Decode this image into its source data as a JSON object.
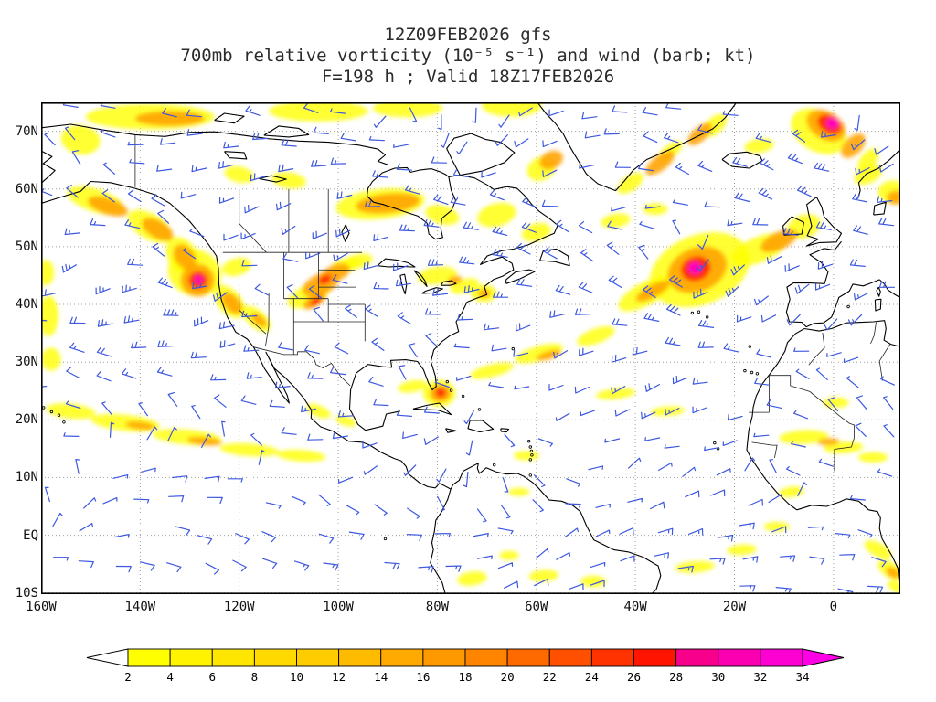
{
  "titles": {
    "line1": "12Z09FEB2026 gfs",
    "line2": "700mb relative vorticity (10⁻⁵ s⁻¹) and wind (barb; kt)",
    "line3": "F=198 h ; Valid 18Z17FEB2026"
  },
  "axes": {
    "lat_labels": [
      "70N",
      "60N",
      "50N",
      "40N",
      "30N",
      "20N",
      "10N",
      "EQ",
      "10S"
    ],
    "lat_values": [
      70,
      60,
      50,
      40,
      30,
      20,
      10,
      0,
      -10
    ],
    "lon_labels": [
      "160W",
      "140W",
      "120W",
      "100W",
      "80W",
      "60W",
      "40W",
      "20W",
      "0"
    ],
    "lon_values": [
      -160,
      -140,
      -120,
      -100,
      -80,
      -60,
      -40,
      -20,
      0
    ]
  },
  "colorbar": {
    "tick_labels": [
      "2",
      "4",
      "6",
      "8",
      "10",
      "12",
      "14",
      "16",
      "18",
      "20",
      "22",
      "24",
      "26",
      "28",
      "30",
      "32",
      "34"
    ],
    "segment_colors": [
      "#ffff00",
      "#fff300",
      "#ffe600",
      "#ffd900",
      "#ffcc00",
      "#ffbb00",
      "#ffaa00",
      "#ff9900",
      "#ff8400",
      "#ff6a00",
      "#ff5000",
      "#ff3300",
      "#ff1400",
      "#f6008c",
      "#fa00b0",
      "#fd00d2"
    ],
    "under_arrow_color": "#ffffff",
    "over_arrow_color": "#ff00e6"
  },
  "style": {
    "barb_color": "#3d58e0",
    "grid_color": "#a0a0a0",
    "coast_color": "#000000",
    "border_color": "#222222",
    "frame_color": "#000000",
    "title_color": "#2b2b2b",
    "label_color": "#111111",
    "background": "#ffffff",
    "vorticity_palette": {
      "1": "#ffff00",
      "2": "#ffa200",
      "3": "#ff2600",
      "4": "#ff00bb"
    }
  },
  "chart_data": {
    "type": "heatmap",
    "field": "700mb relative vorticity",
    "units": "10⁻⁵ s⁻¹",
    "overlay": "wind barbs (kt)",
    "model": "gfs",
    "init_time": "12Z09FEB2026",
    "forecast_hour": "F=198 h",
    "valid_time": "18Z17FEB2026",
    "lon_range": [
      -160,
      13.5
    ],
    "lat_range": [
      -10.2,
      75
    ],
    "contour_levels": [
      2,
      4,
      6,
      8,
      10,
      12,
      14,
      16,
      18,
      20,
      22,
      24,
      26,
      28,
      30,
      32,
      34
    ],
    "vorticity_feature_format": "[lon,lat,rx_deg,ry_deg,rotation_deg,level(1=yellow,2=orange,3=red,4=magenta)]",
    "vorticity_features": [
      [
        -138,
        72.5,
        13,
        2.2,
        0,
        1
      ],
      [
        -134,
        72.2,
        7,
        1.3,
        0,
        2
      ],
      [
        -152,
        68.5,
        4,
        2.5,
        10,
        1
      ],
      [
        -104,
        73.5,
        10,
        1.8,
        0,
        1
      ],
      [
        -86,
        74,
        7,
        1.6,
        0,
        1
      ],
      [
        -65,
        74.5,
        6,
        2,
        0,
        1
      ],
      [
        -120,
        62.5,
        3,
        1.4,
        12,
        1
      ],
      [
        -110,
        61.5,
        3.5,
        1.4,
        8,
        1
      ],
      [
        -149,
        58,
        6,
        2,
        18,
        1
      ],
      [
        -146.5,
        57,
        4.2,
        1.4,
        18,
        2
      ],
      [
        -138,
        53.5,
        5,
        2.2,
        30,
        1
      ],
      [
        -136.5,
        53,
        3.5,
        1.5,
        30,
        2
      ],
      [
        -131.5,
        48.5,
        4,
        2.5,
        55,
        1
      ],
      [
        -131,
        48.2,
        2.8,
        1.7,
        55,
        2
      ],
      [
        -129,
        45.5,
        5.5,
        4,
        20,
        1
      ],
      [
        -128.4,
        44.2,
        3.4,
        2.8,
        0,
        2
      ],
      [
        -128.3,
        44.2,
        1.9,
        1.5,
        0,
        3
      ],
      [
        -128.2,
        44.3,
        0.85,
        0.65,
        0,
        4
      ],
      [
        -122,
        40.5,
        4,
        2,
        48,
        1
      ],
      [
        -121.5,
        40.2,
        2.6,
        1.3,
        48,
        2
      ],
      [
        -116.5,
        37.5,
        3.5,
        1.5,
        40,
        1
      ],
      [
        -116,
        37.3,
        1.9,
        0.8,
        40,
        2
      ],
      [
        -120.5,
        46.5,
        3,
        1.5,
        -15,
        1
      ],
      [
        -106,
        41.5,
        4.5,
        1.8,
        -22,
        1
      ],
      [
        -103.5,
        43.5,
        4,
        1.8,
        -25,
        2
      ],
      [
        -100.5,
        45.5,
        3,
        1.4,
        -20,
        2
      ],
      [
        -98.5,
        46.8,
        3,
        1.2,
        -15,
        1
      ],
      [
        -102.7,
        44.3,
        1.4,
        0.7,
        -25,
        3
      ],
      [
        -104.8,
        40.6,
        2.6,
        1,
        -32,
        2
      ],
      [
        -104.6,
        40.5,
        1.3,
        0.5,
        -32,
        3
      ],
      [
        -96,
        47.5,
        3,
        1.2,
        -12,
        1
      ],
      [
        -91.5,
        57.4,
        9,
        2.6,
        -6,
        1
      ],
      [
        -90,
        57.5,
        6.5,
        1.7,
        -6,
        2
      ],
      [
        -79,
        55.5,
        3.5,
        1.6,
        15,
        1
      ],
      [
        -68,
        55.5,
        4,
        2,
        -15,
        1
      ],
      [
        -60,
        52.5,
        3,
        1.5,
        -15,
        1
      ],
      [
        -80,
        45,
        4,
        1.5,
        -8,
        1
      ],
      [
        -74.5,
        43.2,
        3,
        1.2,
        -15,
        1
      ],
      [
        -76.5,
        44.2,
        1.5,
        0.7,
        -12,
        2
      ],
      [
        -70.6,
        41.9,
        2.6,
        1.5,
        0,
        1
      ],
      [
        -70.5,
        41.9,
        1.2,
        0.75,
        0,
        2
      ],
      [
        -27,
        46,
        10.5,
        6,
        -22,
        1
      ],
      [
        -27.5,
        46,
        6.2,
        3.8,
        -22,
        2
      ],
      [
        -27.8,
        46.2,
        3,
        2.1,
        -18,
        3
      ],
      [
        -28,
        46.3,
        1.35,
        1.05,
        0,
        4
      ],
      [
        -38,
        41.8,
        6,
        2,
        -28,
        1
      ],
      [
        -36.5,
        42.3,
        3.8,
        1.1,
        -28,
        2
      ],
      [
        -15,
        49.5,
        6,
        2.2,
        -22,
        1
      ],
      [
        -11,
        51,
        4,
        1.5,
        -25,
        2
      ],
      [
        -6,
        53.5,
        3.5,
        2,
        -20,
        1
      ],
      [
        -44,
        54.5,
        3,
        1.2,
        -10,
        1
      ],
      [
        -36,
        56.5,
        2.5,
        1,
        0,
        1
      ],
      [
        -35,
        64.5,
        3.5,
        1.3,
        -38,
        2
      ],
      [
        -33,
        66.5,
        3,
        1.1,
        -38,
        1
      ],
      [
        -41,
        61,
        3,
        1.3,
        -35,
        1
      ],
      [
        -27,
        69.5,
        3,
        1.2,
        -42,
        2
      ],
      [
        -24,
        71,
        3,
        1.4,
        -42,
        1
      ],
      [
        -57,
        65,
        2.5,
        1.5,
        -25,
        2
      ],
      [
        -59,
        63.5,
        3,
        2,
        -25,
        1
      ],
      [
        -15,
        67.5,
        3,
        1.2,
        -8,
        1
      ],
      [
        -3,
        70,
        6,
        3.5,
        30,
        1
      ],
      [
        -1.5,
        71,
        4.2,
        2.4,
        30,
        2
      ],
      [
        -0.8,
        71.2,
        2.6,
        1.5,
        30,
        3
      ],
      [
        -0.2,
        71.4,
        1.25,
        0.95,
        0,
        4
      ],
      [
        4,
        67.5,
        3,
        1.5,
        -45,
        2
      ],
      [
        7,
        65,
        2.8,
        1.3,
        -50,
        1
      ],
      [
        12,
        59.5,
        3,
        2,
        0,
        1
      ],
      [
        12.6,
        58.5,
        1.8,
        1.2,
        0,
        2
      ],
      [
        7,
        62.5,
        3,
        1.5,
        -25,
        1
      ],
      [
        -154,
        21.5,
        5,
        1.3,
        6,
        1
      ],
      [
        -143,
        19.5,
        7,
        1.4,
        6,
        1
      ],
      [
        -140,
        19,
        3,
        0.65,
        6,
        2
      ],
      [
        -130.5,
        17,
        7,
        1.3,
        5,
        1
      ],
      [
        -127,
        16.3,
        3.5,
        0.7,
        5,
        2
      ],
      [
        -118,
        14.8,
        6,
        1.1,
        4,
        1
      ],
      [
        -107.5,
        13.8,
        5,
        1,
        4,
        1
      ],
      [
        -158.5,
        38,
        2,
        3.5,
        0,
        1
      ],
      [
        -158,
        30.5,
        2,
        2,
        0,
        1
      ],
      [
        -159,
        45.5,
        1.6,
        2.2,
        0,
        1
      ],
      [
        -104,
        21.5,
        2.6,
        1,
        22,
        1
      ],
      [
        -98.5,
        19.8,
        2.2,
        0.8,
        18,
        1
      ],
      [
        -85,
        25.8,
        3,
        1,
        -10,
        1
      ],
      [
        -79.6,
        24.6,
        3.3,
        2.3,
        0,
        1
      ],
      [
        -79.4,
        24.6,
        2.1,
        1.5,
        0,
        2
      ],
      [
        -79.3,
        24.7,
        1.05,
        0.8,
        0,
        3
      ],
      [
        -69,
        28.5,
        4.5,
        1.1,
        -14,
        1
      ],
      [
        -59.5,
        31.5,
        5,
        1.3,
        -16,
        1
      ],
      [
        -57.5,
        31.2,
        2.6,
        0.7,
        -16,
        2
      ],
      [
        -48,
        34.5,
        4,
        1.3,
        -20,
        1
      ],
      [
        -44,
        24.5,
        4,
        0.9,
        -6,
        1
      ],
      [
        -33.5,
        21.5,
        3.5,
        0.8,
        -4,
        1
      ],
      [
        -62,
        13.8,
        2.6,
        0.8,
        0,
        1
      ],
      [
        -6,
        17,
        5,
        1.2,
        -3,
        1
      ],
      [
        2,
        15.2,
        4,
        1,
        -3,
        1
      ],
      [
        -1,
        16.2,
        2.2,
        0.6,
        -3,
        2
      ],
      [
        8,
        13.5,
        3,
        0.9,
        0,
        1
      ],
      [
        0.5,
        23,
        2.6,
        0.9,
        0,
        1
      ],
      [
        -8.5,
        7.5,
        2.6,
        0.9,
        -8,
        1
      ],
      [
        9,
        -2.5,
        3,
        1.2,
        28,
        1
      ],
      [
        11.5,
        -6,
        2.9,
        1.3,
        32,
        1
      ],
      [
        12,
        -6.5,
        1.5,
        0.8,
        32,
        2
      ],
      [
        13,
        -9,
        2.2,
        1,
        25,
        1
      ],
      [
        -28,
        -5.5,
        4,
        1,
        -4,
        1
      ],
      [
        -18.5,
        -2.5,
        3,
        0.9,
        -4,
        1
      ],
      [
        -11.5,
        1.5,
        2.6,
        0.8,
        0,
        1
      ],
      [
        -73,
        -7.5,
        3,
        1.2,
        -8,
        1
      ],
      [
        -58.5,
        -7,
        3,
        1,
        -4,
        1
      ],
      [
        -48.5,
        -8,
        2.6,
        1,
        0,
        1
      ],
      [
        -65.5,
        -3.5,
        2,
        0.8,
        0,
        1
      ],
      [
        -63.5,
        7.5,
        2.2,
        0.7,
        0,
        1
      ]
    ]
  }
}
